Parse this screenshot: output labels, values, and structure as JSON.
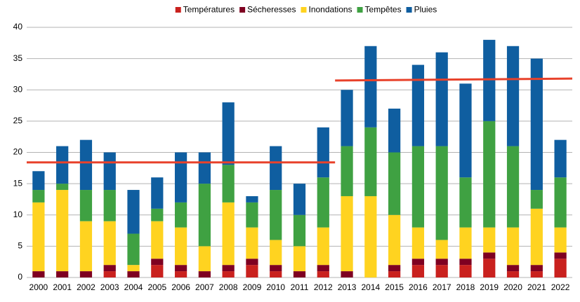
{
  "chart_data": {
    "type": "stacked_bar",
    "categories": [
      "2000",
      "2001",
      "2002",
      "2003",
      "2004",
      "2005",
      "2006",
      "2007",
      "2008",
      "2009",
      "2010",
      "2011",
      "2012",
      "2013",
      "2014",
      "2015",
      "2016",
      "2017",
      "2018",
      "2019",
      "2020",
      "2021",
      "2022"
    ],
    "series": [
      {
        "name": "Températures",
        "color": "#c9211e",
        "values": [
          0,
          0,
          0,
          1,
          0,
          2,
          1,
          0,
          1,
          2,
          1,
          0,
          1,
          0,
          0,
          1,
          2,
          2,
          2,
          3,
          1,
          1,
          3
        ]
      },
      {
        "name": "Sécheresses",
        "color": "#7e0021",
        "values": [
          1,
          1,
          1,
          1,
          1,
          1,
          1,
          1,
          1,
          1,
          1,
          1,
          1,
          1,
          0,
          1,
          1,
          1,
          1,
          1,
          1,
          1,
          1
        ]
      },
      {
        "name": "Inondations",
        "color": "#ffd320",
        "values": [
          11,
          13,
          8,
          7,
          1,
          6,
          6,
          4,
          10,
          5,
          4,
          4,
          6,
          12,
          13,
          8,
          5,
          3,
          5,
          4,
          6,
          9,
          4
        ]
      },
      {
        "name": "Tempêtes",
        "color": "#3fa142",
        "values": [
          2,
          1,
          5,
          5,
          5,
          2,
          4,
          10,
          6,
          4,
          8,
          5,
          8,
          8,
          11,
          10,
          13,
          15,
          8,
          17,
          13,
          3,
          8
        ]
      },
      {
        "name": "Pluies",
        "color": "#0f5ea0",
        "values": [
          3,
          6,
          8,
          6,
          7,
          5,
          8,
          5,
          10,
          1,
          7,
          5,
          8,
          9,
          13,
          7,
          13,
          15,
          15,
          13,
          16,
          21,
          6
        ]
      }
    ],
    "reference_lines": [
      {
        "color": "#e8422b",
        "start": "2000",
        "end": "2012",
        "values": [
          18.4,
          18.4
        ]
      },
      {
        "color": "#e8422b",
        "start": "2013",
        "end": "2022",
        "values": [
          31.5,
          31.8
        ]
      }
    ],
    "ylim": [
      0,
      40
    ],
    "yticks": [
      0,
      5,
      10,
      15,
      20,
      25,
      30,
      35,
      40
    ],
    "grid": true,
    "legend": "top"
  }
}
